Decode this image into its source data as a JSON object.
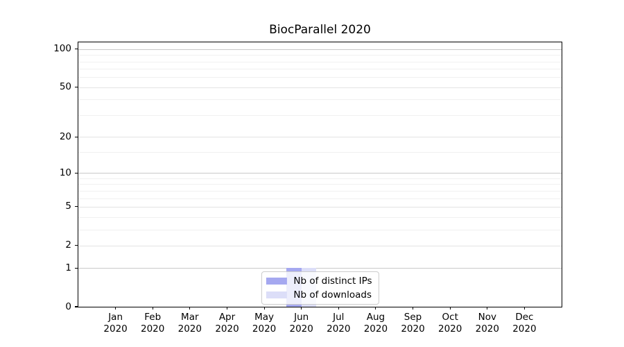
{
  "title": "BiocParallel 2020",
  "chart_data": {
    "type": "bar",
    "title": "BiocParallel 2020",
    "categories": [
      "Jan",
      "Feb",
      "Mar",
      "Apr",
      "May",
      "Jun",
      "Jul",
      "Aug",
      "Sep",
      "Oct",
      "Nov",
      "Dec"
    ],
    "category_year": "2020",
    "series": [
      {
        "name": "Nb of distinct IPs",
        "color": "#a5a8f0",
        "values": [
          0,
          0,
          0,
          0,
          0,
          1,
          0,
          0,
          0,
          0,
          0,
          0
        ]
      },
      {
        "name": "Nb of downloads",
        "color": "#dcdef8",
        "values": [
          0,
          0,
          0,
          0,
          0,
          1,
          0,
          0,
          0,
          0,
          0,
          0
        ]
      }
    ],
    "y_axis": {
      "scale": "log1p",
      "ticks": [
        0,
        1,
        2,
        5,
        10,
        20,
        50,
        100
      ],
      "minor_ticks": [
        3,
        4,
        6,
        7,
        8,
        9,
        15,
        30,
        40,
        60,
        70,
        80,
        90
      ],
      "decade_ticks": [
        1,
        10,
        100
      ],
      "max": 113
    },
    "grid": {
      "decade_color": "#c9c9c9",
      "labeled_color": "#e3e3e3",
      "minor_color": "#f0f0f0"
    },
    "legend": {
      "position": "lower center"
    },
    "bar_group_width_ratio": 0.8
  }
}
